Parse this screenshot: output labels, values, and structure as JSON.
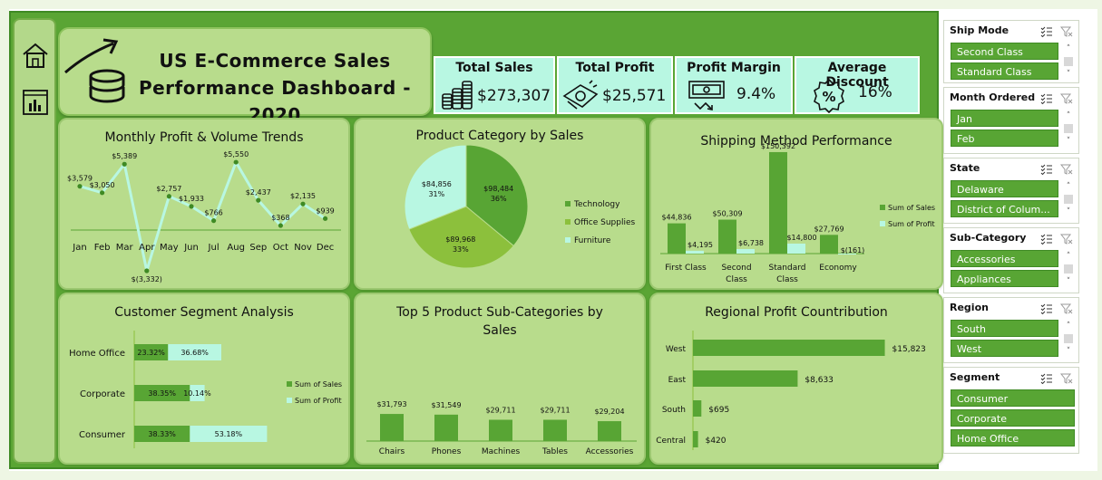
{
  "title": {
    "line1": "US E-Commerce Sales",
    "line2": "Performance Dashboard - 2020"
  },
  "nav": [
    "home-icon",
    "dashboard-icon"
  ],
  "kpis": [
    {
      "label": "Total Sales",
      "value": "$273,307",
      "icon": "coins-icon"
    },
    {
      "label": "Total Profit",
      "value": "$25,571",
      "icon": "cash-icon"
    },
    {
      "label": "Profit Margin",
      "value": "9.4%",
      "icon": "money-trend-icon"
    },
    {
      "label": "Average Discount",
      "value": "16%",
      "icon": "discount-icon"
    }
  ],
  "panels": {
    "monthly": "Monthly Profit & Volume Trends",
    "category": "Product Category by Sales",
    "shipping": "Shipping Method Performance",
    "segment": "Customer Segment Analysis",
    "top5": "Top 5 Product Sub-Categories by Sales",
    "regional": "Regional Profit Countribution"
  },
  "colors": {
    "dark_green": "#58a534",
    "light_green": "#8cc03c",
    "mint": "#b8f7e2",
    "panel": "#b8dc8c"
  },
  "chart_data": [
    {
      "id": "monthly",
      "type": "line",
      "categories": [
        "Jan",
        "Feb",
        "Mar",
        "Apr",
        "May",
        "Jun",
        "Jul",
        "Aug",
        "Sep",
        "Oct",
        "Nov",
        "Dec"
      ],
      "values": [
        3579,
        3050,
        5389,
        -3332,
        2757,
        1933,
        766,
        5550,
        2437,
        368,
        2135,
        939
      ],
      "labels": [
        "$3,579",
        "$3,050",
        "$5,389",
        "$(3,332)",
        "$2,757",
        "$1,933",
        "$766",
        "$5,550",
        "$2,437",
        "$368",
        "$2,135",
        "$939"
      ]
    },
    {
      "id": "category",
      "type": "pie",
      "categories": [
        "Technology",
        "Office Supplies",
        "Furniture"
      ],
      "values": [
        98484,
        89968,
        84856
      ],
      "labels": [
        "$98,484",
        "$89,968",
        "$84,856"
      ],
      "percents": [
        "36%",
        "33%",
        "31%"
      ],
      "colors": [
        "#58a534",
        "#8cc03c",
        "#b8f7e2"
      ]
    },
    {
      "id": "shipping",
      "type": "bar",
      "categories": [
        "First Class",
        "Second Class",
        "Standard Class",
        "Economy"
      ],
      "series": [
        {
          "name": "Sum of Sales",
          "values": [
            44836,
            50309,
            150392,
            27769
          ],
          "labels": [
            "$44,836",
            "$50,309",
            "$150,392",
            "$27,769"
          ]
        },
        {
          "name": "Sum of Profit",
          "values": [
            4195,
            6738,
            14800,
            -161
          ],
          "labels": [
            "$4,195",
            "$6,738",
            "$14,800",
            "$(161)"
          ]
        }
      ]
    },
    {
      "id": "segment",
      "type": "bar",
      "orientation": "horizontal-stacked",
      "categories": [
        "Home Office",
        "Corporate",
        "Consumer"
      ],
      "series": [
        {
          "name": "Sum of Sales",
          "values": [
            23.32,
            38.35,
            38.33
          ],
          "labels": [
            "23.32%",
            "38.35%",
            "38.33%"
          ]
        },
        {
          "name": "Sum of Profit",
          "values": [
            36.68,
            10.14,
            53.18
          ],
          "labels": [
            "36.68%",
            "10.14%",
            "53.18%"
          ]
        }
      ]
    },
    {
      "id": "top5",
      "type": "bar",
      "categories": [
        "Chairs",
        "Phones",
        "Machines",
        "Tables",
        "Accessories"
      ],
      "values": [
        31793,
        31549,
        29711,
        29711,
        29204
      ],
      "labels": [
        "$31,793",
        "$31,549",
        "$29,711",
        "$29,711",
        "$29,204"
      ]
    },
    {
      "id": "regional",
      "type": "bar",
      "orientation": "horizontal",
      "categories": [
        "West",
        "East",
        "South",
        "Central"
      ],
      "values": [
        15823,
        8633,
        695,
        420
      ],
      "labels": [
        "$15,823",
        "$8,633",
        "$695",
        "$420"
      ]
    }
  ],
  "slicers": [
    {
      "title": "Ship Mode",
      "items": [
        "Second Class",
        "Standard Class"
      ],
      "scroll": true
    },
    {
      "title": "Month Ordered",
      "items": [
        "Jan",
        "Feb"
      ],
      "scroll": true
    },
    {
      "title": "State",
      "items": [
        "Delaware",
        "District of Colum..."
      ],
      "scroll": true
    },
    {
      "title": "Sub-Category",
      "items": [
        "Accessories",
        "Appliances"
      ],
      "scroll": true
    },
    {
      "title": "Region",
      "items": [
        "South",
        "West"
      ],
      "scroll": true
    },
    {
      "title": "Segment",
      "items": [
        "Consumer",
        "Corporate",
        "Home Office"
      ],
      "scroll": false
    }
  ]
}
